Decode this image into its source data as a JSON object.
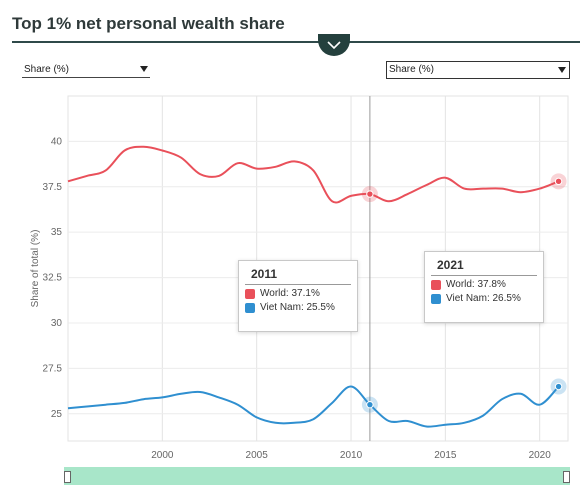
{
  "header": {
    "title": "Top 1% net personal wealth share"
  },
  "controls": {
    "left_select": {
      "value": "Share (%)"
    },
    "right_select": {
      "value": "Share (%)"
    }
  },
  "colors": {
    "world": "#e9505a",
    "vietnam": "#2f8fd0",
    "accent": "#24403d",
    "scrollbar": "#a8e6c9"
  },
  "icons": {
    "collapse": "chevron-down-icon"
  },
  "chart_data": {
    "type": "line",
    "ylabel": "Share of total (%)",
    "xlabel": "",
    "xlim": [
      1995,
      2021.5
    ],
    "ylim": [
      23.5,
      42.5
    ],
    "yticks": [
      25,
      27.5,
      30,
      32.5,
      35,
      37.5,
      40
    ],
    "ytick_labels": [
      "25",
      "27.5",
      "30",
      "32.5",
      "35",
      "37.5",
      "40"
    ],
    "xticks": [
      2000,
      2005,
      2010,
      2015,
      2020
    ],
    "xtick_labels": [
      "2000",
      "2005",
      "2010",
      "2015",
      "2020"
    ],
    "grid": true,
    "series": [
      {
        "name": "World",
        "color": "#e9505a",
        "x": [
          1995,
          1996,
          1997,
          1998,
          1999,
          2000,
          2001,
          2002,
          2003,
          2004,
          2005,
          2006,
          2007,
          2008,
          2009,
          2010,
          2011,
          2012,
          2013,
          2014,
          2015,
          2016,
          2017,
          2018,
          2019,
          2020,
          2021
        ],
        "values": [
          37.8,
          38.1,
          38.4,
          39.5,
          39.7,
          39.5,
          39.1,
          38.2,
          38.1,
          38.8,
          38.5,
          38.6,
          38.9,
          38.4,
          36.7,
          37.0,
          37.1,
          36.7,
          37.1,
          37.6,
          38.0,
          37.4,
          37.4,
          37.4,
          37.2,
          37.4,
          37.8
        ]
      },
      {
        "name": "Viet Nam",
        "color": "#2f8fd0",
        "x": [
          1995,
          1996,
          1997,
          1998,
          1999,
          2000,
          2001,
          2002,
          2003,
          2004,
          2005,
          2006,
          2007,
          2008,
          2009,
          2010,
          2011,
          2012,
          2013,
          2014,
          2015,
          2016,
          2017,
          2018,
          2019,
          2020,
          2021
        ],
        "values": [
          25.3,
          25.4,
          25.5,
          25.6,
          25.8,
          25.9,
          26.1,
          26.2,
          25.9,
          25.5,
          24.8,
          24.5,
          24.5,
          24.7,
          25.6,
          26.5,
          25.5,
          24.6,
          24.6,
          24.3,
          24.4,
          24.5,
          24.9,
          25.8,
          26.1,
          25.5,
          26.5
        ]
      }
    ],
    "crosshair_x": 2011,
    "tooltips": [
      {
        "year": "2011",
        "rows": [
          {
            "label": "World: 37.1%",
            "color": "#e9505a"
          },
          {
            "label": "Viet Nam: 25.5%",
            "color": "#2f8fd0"
          }
        ]
      },
      {
        "year": "2021",
        "rows": [
          {
            "label": "World: 37.8%",
            "color": "#e9505a"
          },
          {
            "label": "Viet Nam: 26.5%",
            "color": "#2f8fd0"
          }
        ]
      }
    ],
    "highlighted_points": [
      {
        "series": "World",
        "x": 2011,
        "y": 37.1
      },
      {
        "series": "Viet Nam",
        "x": 2011,
        "y": 25.5
      },
      {
        "series": "World",
        "x": 2021,
        "y": 37.8
      },
      {
        "series": "Viet Nam",
        "x": 2021,
        "y": 26.5
      }
    ]
  }
}
